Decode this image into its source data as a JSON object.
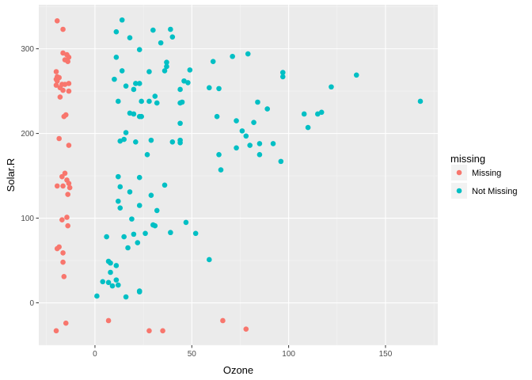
{
  "chart_data": {
    "type": "scatter",
    "xlabel": "Ozone",
    "ylabel": "Solar.R",
    "xlim": [
      -29,
      177
    ],
    "ylim": [
      -50,
      352
    ],
    "x_ticks": [
      0,
      50,
      100,
      150
    ],
    "x_tick_labels": [
      "0",
      "50",
      "100",
      "150"
    ],
    "y_ticks": [
      0,
      100,
      200,
      300
    ],
    "y_tick_labels": [
      "0",
      "100",
      "200",
      "300"
    ],
    "grid": true,
    "legend_position": "right",
    "legend": {
      "title": "missing",
      "entries": [
        {
          "label": "Missing",
          "color": "#F8766D"
        },
        {
          "label": "Not Missing",
          "color": "#00BFC4"
        }
      ]
    },
    "series": [
      {
        "name": "Missing",
        "color": "#F8766D",
        "points": [
          [
            -19.5,
            333
          ],
          [
            -16.5,
            323
          ],
          [
            -16.5,
            295
          ],
          [
            -14.5,
            293
          ],
          [
            -13.5,
            290
          ],
          [
            -15.5,
            287
          ],
          [
            -14,
            285
          ],
          [
            -20,
            273
          ],
          [
            -19.5,
            267
          ],
          [
            -18.5,
            266
          ],
          [
            -20,
            264
          ],
          [
            -19.5,
            262
          ],
          [
            -13.5,
            259
          ],
          [
            -17,
            258
          ],
          [
            -15.5,
            258
          ],
          [
            -20,
            257
          ],
          [
            -18,
            254
          ],
          [
            -16.5,
            251
          ],
          [
            -13.5,
            250
          ],
          [
            -18,
            243
          ],
          [
            -15,
            222
          ],
          [
            -16,
            220
          ],
          [
            -18.5,
            194
          ],
          [
            -13.5,
            186
          ],
          [
            -15.5,
            153
          ],
          [
            -17,
            149
          ],
          [
            -14.5,
            145
          ],
          [
            -13.5,
            141
          ],
          [
            -19.5,
            138
          ],
          [
            -16.5,
            138
          ],
          [
            -13,
            136
          ],
          [
            -14,
            128
          ],
          [
            -14.5,
            101
          ],
          [
            -17,
            98
          ],
          [
            -14,
            91
          ],
          [
            -18.5,
            66
          ],
          [
            -19.5,
            64
          ],
          [
            -16.5,
            59
          ],
          [
            -16.5,
            48
          ],
          [
            -16,
            31
          ],
          [
            -15,
            -24
          ],
          [
            -20,
            -33
          ],
          [
            7,
            -21
          ],
          [
            28,
            -33
          ],
          [
            35,
            -33
          ],
          [
            66,
            -21
          ],
          [
            78,
            -31
          ]
        ]
      },
      {
        "name": "Not Missing",
        "color": "#00BFC4",
        "points": [
          [
            14,
            334
          ],
          [
            11,
            320
          ],
          [
            30,
            322
          ],
          [
            39,
            323
          ],
          [
            40,
            314
          ],
          [
            18,
            313
          ],
          [
            23,
            299
          ],
          [
            34,
            307
          ],
          [
            11,
            290
          ],
          [
            37,
            284
          ],
          [
            37,
            279
          ],
          [
            36,
            274
          ],
          [
            49,
            275
          ],
          [
            28,
            273
          ],
          [
            14,
            274
          ],
          [
            21,
            259
          ],
          [
            23,
            259
          ],
          [
            46,
            262
          ],
          [
            48,
            260
          ],
          [
            10,
            264
          ],
          [
            20,
            252
          ],
          [
            44,
            252
          ],
          [
            59,
            254
          ],
          [
            61,
            285
          ],
          [
            64,
            253
          ],
          [
            71,
            291
          ],
          [
            79,
            294
          ],
          [
            97,
            272
          ],
          [
            97,
            267
          ],
          [
            122,
            255
          ],
          [
            135,
            269
          ],
          [
            168,
            238
          ],
          [
            12,
            238
          ],
          [
            16,
            256
          ],
          [
            24,
            238
          ],
          [
            28,
            238
          ],
          [
            31,
            244
          ],
          [
            32,
            236
          ],
          [
            18,
            224
          ],
          [
            20,
            223
          ],
          [
            23,
            220
          ],
          [
            44,
            236
          ],
          [
            45,
            237
          ],
          [
            84,
            237
          ],
          [
            89,
            229
          ],
          [
            108,
            223
          ],
          [
            115,
            223
          ],
          [
            117,
            225
          ],
          [
            63,
            220
          ],
          [
            73,
            215
          ],
          [
            82,
            213
          ],
          [
            44,
            212
          ],
          [
            24,
            220
          ],
          [
            16,
            201
          ],
          [
            13,
            191
          ],
          [
            15,
            193
          ],
          [
            21,
            190
          ],
          [
            29,
            192
          ],
          [
            40,
            190
          ],
          [
            44,
            192
          ],
          [
            44,
            189
          ],
          [
            76,
            203
          ],
          [
            78,
            197
          ],
          [
            80,
            186
          ],
          [
            85,
            188
          ],
          [
            92,
            188
          ],
          [
            110,
            207
          ],
          [
            96,
            167
          ],
          [
            27,
            175
          ],
          [
            64,
            175
          ],
          [
            73,
            183
          ],
          [
            85,
            175
          ],
          [
            65,
            157
          ],
          [
            12,
            149
          ],
          [
            23,
            148
          ],
          [
            13,
            137
          ],
          [
            18,
            131
          ],
          [
            29,
            127
          ],
          [
            36,
            139
          ],
          [
            12,
            120
          ],
          [
            13,
            112
          ],
          [
            23,
            115
          ],
          [
            32,
            109
          ],
          [
            19,
            99
          ],
          [
            26,
            82
          ],
          [
            30,
            92
          ],
          [
            31,
            91
          ],
          [
            39,
            83
          ],
          [
            47,
            95
          ],
          [
            52,
            82
          ],
          [
            6,
            78
          ],
          [
            15,
            78
          ],
          [
            20,
            81
          ],
          [
            17,
            65
          ],
          [
            22,
            71
          ],
          [
            59,
            51
          ],
          [
            7,
            49
          ],
          [
            8,
            47
          ],
          [
            11,
            44
          ],
          [
            8,
            36
          ],
          [
            7,
            24
          ],
          [
            4,
            25
          ],
          [
            9,
            20
          ],
          [
            11,
            27
          ],
          [
            12,
            21
          ],
          [
            16,
            7
          ],
          [
            23,
            13
          ],
          [
            23,
            14
          ],
          [
            1,
            8
          ]
        ]
      }
    ]
  }
}
